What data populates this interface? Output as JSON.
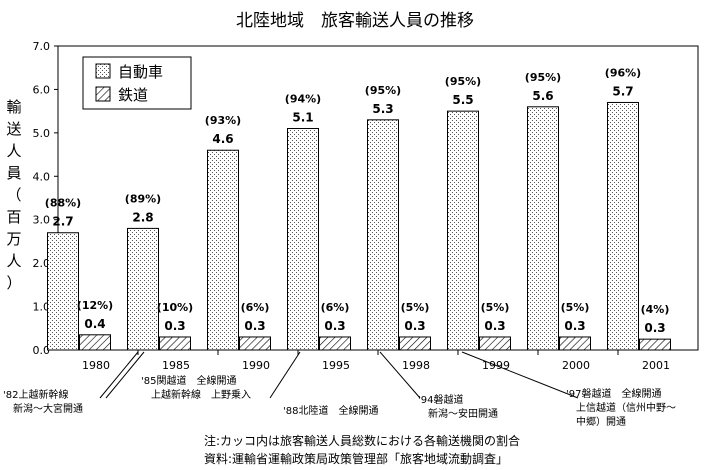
{
  "chart_data": {
    "type": "bar",
    "title": "北陸地域　旅客輸送人員の推移",
    "ylabel": [
      "輸",
      "送",
      "人",
      "員",
      "（",
      "百",
      "万",
      "人",
      "）"
    ],
    "ylim": [
      0,
      7
    ],
    "yticks": [
      "0.0",
      "1.0",
      "2.0",
      "3.0",
      "4.0",
      "5.0",
      "6.0",
      "7.0"
    ],
    "categories": [
      "1980",
      "1985",
      "1990",
      "1995",
      "1998",
      "1999",
      "2000",
      "2001"
    ],
    "series": [
      {
        "name": "自動車",
        "values": [
          2.7,
          2.8,
          4.6,
          5.1,
          5.3,
          5.5,
          5.6,
          5.7
        ],
        "labels": [
          "2.7",
          "2.8",
          "4.6",
          "5.1",
          "5.3",
          "5.5",
          "5.6",
          "5.7"
        ],
        "shares": [
          "(88%)",
          "(89%)",
          "(93%)",
          "(94%)",
          "(95%)",
          "(95%)",
          "(95%)",
          "(96%)"
        ]
      },
      {
        "name": "鉄道",
        "values": [
          0.35,
          0.3,
          0.3,
          0.3,
          0.3,
          0.3,
          0.3,
          0.25
        ],
        "labels": [
          "0.4",
          "0.3",
          "0.3",
          "0.3",
          "0.3",
          "0.3",
          "0.3",
          "0.3"
        ],
        "shares": [
          "(12%)",
          "(10%)",
          "(6%)",
          "(6%)",
          "(5%)",
          "(5%)",
          "(5%)",
          "(4%)"
        ]
      }
    ],
    "legend_position": "top-left",
    "grid": false
  },
  "annotations": [
    {
      "lines": [
        "'82上越新幹線",
        "　新潟～大宮開通"
      ]
    },
    {
      "lines": [
        "'85関越道　全線開通",
        "　上越新幹線　上野乗入"
      ]
    },
    {
      "lines": [
        "'88北陸道　全線開通"
      ]
    },
    {
      "lines": [
        "'94磐越道",
        "　新潟～安田開通"
      ]
    },
    {
      "lines": [
        "'97磐越道　全線開通",
        "　上信越道（信州中野～",
        "　中郷）開通"
      ]
    }
  ],
  "footnotes": {
    "note": "注:カッコ内は旅客輸送人員総数における各輸送機関の割合",
    "source": "資料:運輸省運輸政策局政策管理部「旅客地域流動調査」"
  }
}
